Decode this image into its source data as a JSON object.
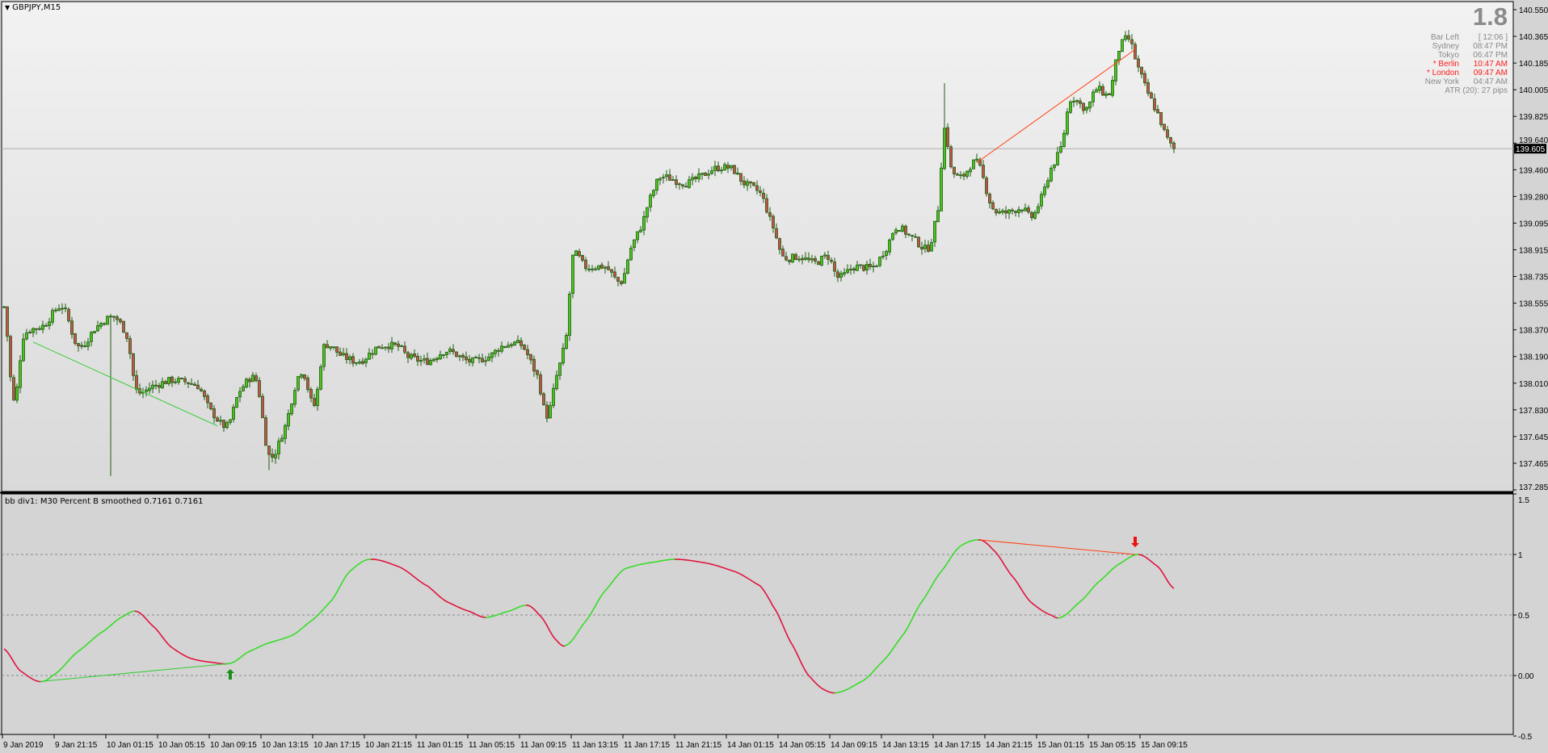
{
  "window": {
    "symbol_title": "GBPJPY,M15",
    "menu_icon": "triangle-down-icon"
  },
  "indicator": {
    "title": "bb div1: M30  Percent B smoothed 0.7161 0.7161"
  },
  "info_panel": {
    "spread": "1.8",
    "rows": [
      {
        "label": "Bar Left",
        "value": "[ 12:06 ]",
        "highlight": false
      },
      {
        "label": "Sydney",
        "value": "08:47 PM",
        "highlight": false
      },
      {
        "label": "Tokyo",
        "value": "06:47 PM",
        "highlight": false
      },
      {
        "label": "* Berlin",
        "value": "10:47 AM",
        "highlight": true
      },
      {
        "label": "* London",
        "value": "09:47 AM",
        "highlight": true
      },
      {
        "label": "New York",
        "value": "04:47 AM",
        "highlight": false
      }
    ],
    "atr": "ATR (20): 27 pips"
  },
  "colors": {
    "bull_body": "#4cc41e",
    "bear_body": "#c8504a",
    "candle_outline": "#1f5c10",
    "line_up": "#33dd22",
    "line_down": "#e0103c",
    "div_bull": "#33cc33",
    "div_bear": "#ff4010",
    "arrow_up": "#1a8f1a",
    "arrow_down": "#ee1111"
  },
  "chart_data": [
    {
      "type": "candlestick",
      "title": "GBPJPY,M15",
      "timeframe": "M15",
      "current_price": "139.605",
      "ylim": [
        137.285,
        140.55
      ],
      "price_ticks": [
        "140.550",
        "140.365",
        "140.185",
        "140.005",
        "139.825",
        "139.640",
        "139.460",
        "139.280",
        "139.095",
        "138.915",
        "138.735",
        "138.555",
        "138.370",
        "138.190",
        "138.010",
        "137.830",
        "137.645",
        "137.465",
        "137.285"
      ],
      "time_ticks": [
        "9 Jan 2019",
        "9 Jan 21:15",
        "10 Jan 01:15",
        "10 Jan 05:15",
        "10 Jan 09:15",
        "10 Jan 13:15",
        "10 Jan 17:15",
        "10 Jan 21:15",
        "11 Jan 01:15",
        "11 Jan 05:15",
        "11 Jan 09:15",
        "11 Jan 13:15",
        "11 Jan 17:15",
        "11 Jan 21:15",
        "14 Jan 01:15",
        "14 Jan 05:15",
        "14 Jan 09:15",
        "14 Jan 13:15",
        "14 Jan 17:15",
        "14 Jan 21:15",
        "15 Jan 01:15",
        "15 Jan 05:15",
        "15 Jan 09:15"
      ],
      "close_path_bar_price": [
        [
          0,
          138.53
        ],
        [
          3,
          137.89
        ],
        [
          6,
          138.33
        ],
        [
          12,
          138.4
        ],
        [
          18,
          138.53
        ],
        [
          23,
          138.26
        ],
        [
          29,
          138.4
        ],
        [
          34,
          138.46
        ],
        [
          38,
          138.33
        ],
        [
          41,
          137.96
        ],
        [
          46,
          137.99
        ],
        [
          52,
          138.03
        ],
        [
          60,
          137.99
        ],
        [
          64,
          137.82
        ],
        [
          69,
          137.72
        ],
        [
          73,
          137.96
        ],
        [
          78,
          138.03
        ],
        [
          82,
          137.52
        ],
        [
          86,
          137.66
        ],
        [
          92,
          138.09
        ],
        [
          96,
          137.86
        ],
        [
          99,
          138.26
        ],
        [
          105,
          138.19
        ],
        [
          110,
          138.16
        ],
        [
          116,
          138.26
        ],
        [
          122,
          138.26
        ],
        [
          125,
          138.19
        ],
        [
          131,
          138.16
        ],
        [
          137,
          138.23
        ],
        [
          144,
          138.16
        ],
        [
          150,
          138.19
        ],
        [
          154,
          138.26
        ],
        [
          160,
          138.27
        ],
        [
          165,
          138.06
        ],
        [
          168,
          137.79
        ],
        [
          171,
          138.06
        ],
        [
          174,
          138.33
        ],
        [
          176,
          138.87
        ],
        [
          180,
          138.8
        ],
        [
          186,
          138.8
        ],
        [
          191,
          138.7
        ],
        [
          194,
          138.93
        ],
        [
          197,
          139.07
        ],
        [
          200,
          139.27
        ],
        [
          203,
          139.41
        ],
        [
          211,
          139.37
        ],
        [
          215,
          139.41
        ],
        [
          220,
          139.47
        ],
        [
          225,
          139.47
        ],
        [
          229,
          139.37
        ],
        [
          234,
          139.3
        ],
        [
          238,
          139.07
        ],
        [
          241,
          138.87
        ],
        [
          246,
          138.87
        ],
        [
          251,
          138.83
        ],
        [
          255,
          138.87
        ],
        [
          258,
          138.73
        ],
        [
          263,
          138.8
        ],
        [
          269,
          138.8
        ],
        [
          273,
          138.93
        ],
        [
          276,
          139.07
        ],
        [
          281,
          139.0
        ],
        [
          286,
          138.93
        ],
        [
          289,
          139.2
        ],
        [
          291,
          139.74
        ],
        [
          293,
          139.47
        ],
        [
          296,
          139.41
        ],
        [
          301,
          139.51
        ],
        [
          306,
          139.2
        ],
        [
          310,
          139.17
        ],
        [
          315,
          139.2
        ],
        [
          318,
          139.14
        ],
        [
          321,
          139.27
        ],
        [
          324,
          139.47
        ],
        [
          327,
          139.61
        ],
        [
          330,
          139.94
        ],
        [
          335,
          139.88
        ],
        [
          338,
          140.01
        ],
        [
          342,
          139.98
        ],
        [
          345,
          140.28
        ],
        [
          348,
          140.35
        ],
        [
          351,
          140.15
        ],
        [
          354,
          139.98
        ],
        [
          357,
          139.84
        ],
        [
          360,
          139.67
        ],
        [
          362,
          139.605
        ]
      ],
      "divergence_lines": [
        {
          "kind": "bullish",
          "from": [
            9,
            138.29
          ],
          "to": [
            66,
            137.72
          ]
        },
        {
          "kind": "bearish",
          "from": [
            301,
            139.51
          ],
          "to": [
            350,
            140.28
          ]
        }
      ]
    },
    {
      "type": "line",
      "title": "bb div1: M30  Percent B smoothed",
      "ylim": [
        -0.5,
        1.5
      ],
      "y_ticks": [
        "1.5",
        "1",
        "0.5",
        "0.00",
        "-0.5"
      ],
      "levels": [
        1,
        0.5,
        0
      ],
      "series_bar_value": [
        [
          0,
          0.22
        ],
        [
          5,
          0.04
        ],
        [
          11,
          -0.05
        ],
        [
          15,
          0.0
        ],
        [
          23,
          0.2
        ],
        [
          31,
          0.37
        ],
        [
          37,
          0.49
        ],
        [
          41,
          0.53
        ],
        [
          46,
          0.41
        ],
        [
          52,
          0.23
        ],
        [
          58,
          0.14
        ],
        [
          64,
          0.11
        ],
        [
          70,
          0.1
        ],
        [
          76,
          0.2
        ],
        [
          82,
          0.27
        ],
        [
          89,
          0.33
        ],
        [
          95,
          0.45
        ],
        [
          101,
          0.61
        ],
        [
          107,
          0.86
        ],
        [
          113,
          0.96
        ],
        [
          122,
          0.9
        ],
        [
          131,
          0.74
        ],
        [
          137,
          0.61
        ],
        [
          144,
          0.53
        ],
        [
          149,
          0.48
        ],
        [
          156,
          0.53
        ],
        [
          162,
          0.58
        ],
        [
          166,
          0.49
        ],
        [
          171,
          0.29
        ],
        [
          174,
          0.25
        ],
        [
          180,
          0.45
        ],
        [
          186,
          0.7
        ],
        [
          192,
          0.88
        ],
        [
          202,
          0.94
        ],
        [
          208,
          0.96
        ],
        [
          217,
          0.93
        ],
        [
          226,
          0.86
        ],
        [
          234,
          0.74
        ],
        [
          238,
          0.57
        ],
        [
          244,
          0.25
        ],
        [
          249,
          0.0
        ],
        [
          254,
          -0.12
        ],
        [
          258,
          -0.14
        ],
        [
          266,
          -0.04
        ],
        [
          272,
          0.12
        ],
        [
          278,
          0.33
        ],
        [
          284,
          0.61
        ],
        [
          290,
          0.86
        ],
        [
          296,
          1.07
        ],
        [
          302,
          1.12
        ],
        [
          306,
          1.04
        ],
        [
          312,
          0.82
        ],
        [
          318,
          0.6
        ],
        [
          324,
          0.5
        ],
        [
          327,
          0.48
        ],
        [
          333,
          0.61
        ],
        [
          339,
          0.78
        ],
        [
          345,
          0.92
        ],
        [
          351,
          1.0
        ],
        [
          357,
          0.9
        ],
        [
          362,
          0.72
        ]
      ],
      "divergence_lines": [
        {
          "kind": "bullish",
          "from": [
            11,
            -0.05
          ],
          "to": [
            70,
            0.1
          ]
        },
        {
          "kind": "bearish",
          "from": [
            302,
            1.12
          ],
          "to": [
            350,
            1.0
          ]
        }
      ],
      "arrows": [
        {
          "kind": "buy",
          "bar": 70,
          "value": 0.0
        },
        {
          "kind": "sell",
          "bar": 350,
          "value": 1.1
        }
      ]
    }
  ]
}
